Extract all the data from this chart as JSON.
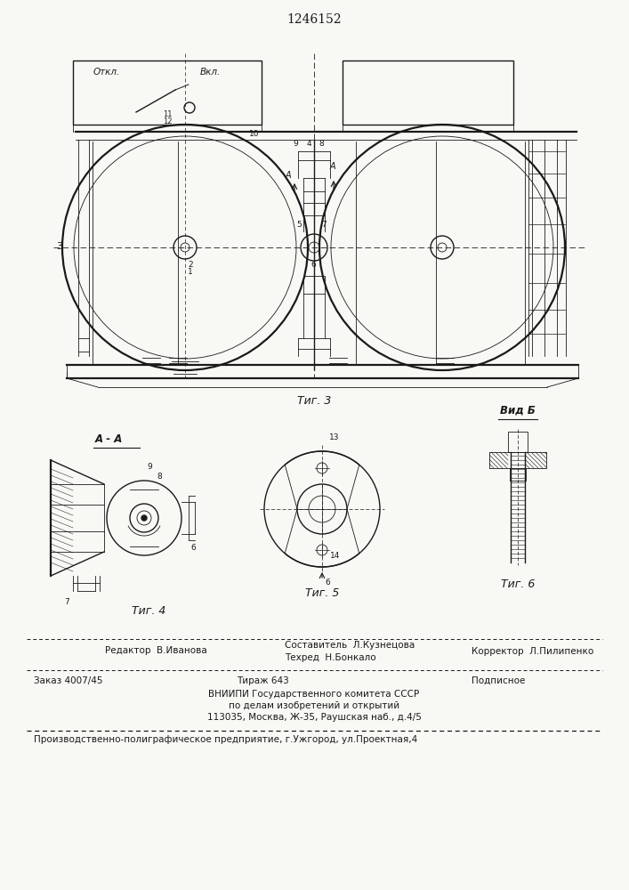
{
  "title": "1246152",
  "fig3_caption": "Τиг. 3",
  "fig4_caption": "Τиг. 4",
  "fig5_caption": "Τиг. 5",
  "fig6_caption": "Τиг. 6",
  "label_AA": "A - A",
  "label_VidB": "Вид Б",
  "label_Otkl": "Откл.",
  "label_Vkl": "Вкл.",
  "editor_line": "Редактор  В.Иванова",
  "composer_line": "Составитель  Л.Кузнецова",
  "techred_line": "Техред  Н.Бонкало",
  "corrector_line": "Корректор  Л.Пилипенко",
  "order_line": "Заказ 4007/45",
  "tiraj_line": "Тираж 643",
  "podpisnoe_line": "Подписное",
  "vniip_line1": "ВНИИПИ Государственного комитета СССР",
  "vniip_line2": "по делам изобретений и открытий",
  "vniip_line3": "113035, Москва, Ж-35, Раушская наб., д.4/5",
  "production_line": "Производственно-полиграфическое предприятие, г.Ужгород, ул.Проектная,4",
  "bg_color": "#f8f8f5",
  "line_color": "#1a1a1a",
  "text_color": "#1a1a1a"
}
